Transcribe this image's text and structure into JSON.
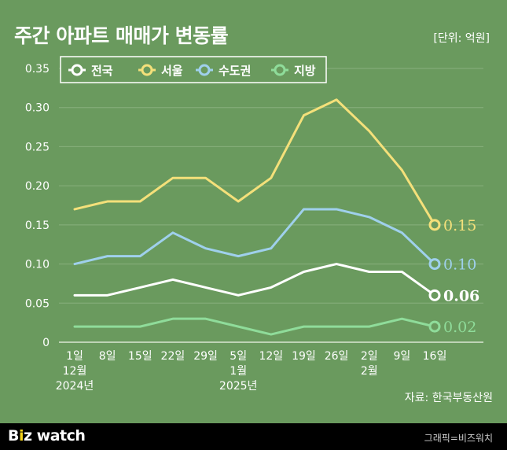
{
  "header": {
    "title": "주간 아파트 매매가 변동률",
    "unit": "[단위: 억원]"
  },
  "source": "자료: 한국부동산원",
  "footer": {
    "brand_b": "B",
    "brand_i": "i",
    "brand_rest": "z watch",
    "credit": "그래픽=비즈워치"
  },
  "colors": {
    "background": "#6a9a5e",
    "national": "#ffffff",
    "seoul": "#f4e07a",
    "metro": "#9fd0ec",
    "regional": "#8fdc9a"
  },
  "chart_data": {
    "type": "line",
    "title": "주간 아파트 매매가 변동률",
    "xlabel": "",
    "ylabel": "",
    "ylim": [
      0,
      0.35
    ],
    "yticks": [
      "0",
      "0.05",
      "0.10",
      "0.15",
      "0.20",
      "0.25",
      "0.30",
      "0.35"
    ],
    "grid": true,
    "legend": "top-left",
    "categories": [
      "1일",
      "8일",
      "15일",
      "22일",
      "29일",
      "5일",
      "12일",
      "19일",
      "26일",
      "2일",
      "9일",
      "16일"
    ],
    "month_labels": [
      {
        "index": 0,
        "lines": [
          "12월",
          "2024년"
        ]
      },
      {
        "index": 5,
        "lines": [
          "1월",
          "2025년"
        ]
      },
      {
        "index": 9,
        "lines": [
          "2월"
        ]
      }
    ],
    "series": [
      {
        "name": "전국",
        "key": "national",
        "values": [
          0.06,
          0.06,
          0.07,
          0.08,
          0.07,
          0.06,
          0.07,
          0.09,
          0.1,
          0.09,
          0.09,
          0.06
        ],
        "end_label": "0.06"
      },
      {
        "name": "서울",
        "key": "seoul",
        "values": [
          0.17,
          0.18,
          0.18,
          0.21,
          0.21,
          0.18,
          0.21,
          0.29,
          0.31,
          0.27,
          0.22,
          0.15
        ],
        "end_label": "0.15"
      },
      {
        "name": "수도권",
        "key": "metro",
        "values": [
          0.1,
          0.11,
          0.11,
          0.14,
          0.12,
          0.11,
          0.12,
          0.17,
          0.17,
          0.16,
          0.14,
          0.1
        ],
        "end_label": "0.10"
      },
      {
        "name": "지방",
        "key": "regional",
        "values": [
          0.02,
          0.02,
          0.02,
          0.03,
          0.03,
          0.02,
          0.01,
          0.02,
          0.02,
          0.02,
          0.03,
          0.02
        ],
        "end_label": "0.02"
      }
    ]
  }
}
